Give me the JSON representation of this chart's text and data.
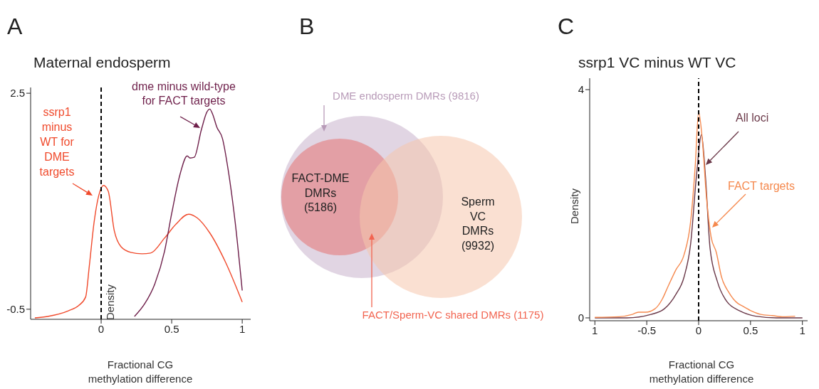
{
  "chart_data": [
    {
      "type": "line",
      "title": "Maternal endosperm",
      "xlabel": "Fractional CG\nmethylation difference",
      "ylabel": "Density",
      "annotations": [
        "A"
      ],
      "xlim": [
        -0.5,
        1.06
      ],
      "xticks": [
        0,
        0.5,
        1
      ],
      "ylim": [
        -0.64,
        2.58
      ],
      "yticks": [
        -0.5,
        2.5
      ],
      "ref_lines": [
        {
          "axis": "x",
          "value": 0,
          "line_style": "dashed",
          "color": "#000000"
        }
      ],
      "series": [
        {
          "name": "ssrp1\nminus\nWT for\nDME\ntargets",
          "color": "#f04a2c",
          "x": [
            -0.47,
            -0.38,
            -0.23,
            -0.16,
            -0.11,
            -0.084,
            -0.05,
            -0.017,
            0.017,
            0.05,
            0.093,
            0.14,
            0.21,
            0.29,
            0.35,
            0.45,
            0.53,
            0.62,
            0.68,
            0.77,
            0.88,
            1.0
          ],
          "values": [
            -0.62,
            -0.6,
            -0.52,
            -0.45,
            -0.33,
            0.1,
            0.71,
            1.08,
            1.22,
            1.14,
            0.59,
            0.37,
            0.29,
            0.27,
            0.28,
            0.49,
            0.68,
            0.82,
            0.77,
            0.56,
            0.16,
            -0.4
          ]
        },
        {
          "name": "dme minus wild-type\nfor FACT targets",
          "color": "#6e1f4a",
          "x": [
            0.236,
            0.31,
            0.38,
            0.45,
            0.5,
            0.56,
            0.61,
            0.63,
            0.66,
            0.71,
            0.75,
            0.77,
            0.79,
            0.82,
            0.86,
            0.9,
            0.95,
            1.0
          ],
          "values": [
            -0.6,
            -0.42,
            -0.15,
            0.31,
            0.83,
            1.38,
            1.63,
            1.6,
            1.61,
            1.99,
            2.24,
            2.28,
            2.21,
            2.03,
            1.87,
            1.44,
            0.71,
            -0.24
          ]
        }
      ]
    },
    {
      "type": "other",
      "annotations": [
        "B",
        "DME endosperm DMRs (9816)",
        "FACT-DME\nDMRs\n(5186)",
        "Sperm\nVC\nDMRs\n(9932)",
        "FACT/Sperm-VC shared DMRs (1175)"
      ]
    },
    {
      "type": "line",
      "title": "ssrp1 VC minus WT VC",
      "xlabel": "Fractional CG\nmethylation difference",
      "ylabel": "Density",
      "annotations": [
        "C"
      ],
      "xlim": [
        -1.05,
        1.05
      ],
      "xticks": [
        {
          "value": -1,
          "label": "1"
        },
        -0.5,
        0,
        0.5,
        1
      ],
      "ylim": [
        -0.05,
        4.2
      ],
      "yticks": [
        0,
        4
      ],
      "ref_lines": [
        {
          "axis": "x",
          "value": 0,
          "line_style": "dashed",
          "color": "#000000"
        }
      ],
      "series": [
        {
          "name": "All loci",
          "color": "#6a3848",
          "x": [
            -1.0,
            -0.69,
            -0.46,
            -0.33,
            -0.22,
            -0.14,
            -0.077,
            -0.022,
            0.027,
            0.066,
            0.11,
            0.18,
            0.27,
            0.4,
            0.55,
            0.75,
            1.0
          ],
          "values": [
            0,
            0,
            0.06,
            0.16,
            0.41,
            0.72,
            1.3,
            2.47,
            3.21,
            2.47,
            1.22,
            0.64,
            0.29,
            0.12,
            0.03,
            0,
            0
          ]
        },
        {
          "name": "FACT targets",
          "color": "#f5894e",
          "x": [
            -1.0,
            -0.77,
            -0.64,
            -0.58,
            -0.51,
            -0.42,
            -0.35,
            -0.3,
            -0.22,
            -0.14,
            -0.077,
            -0.033,
            0,
            0.033,
            0.077,
            0.12,
            0.17,
            0.22,
            0.29,
            0.38,
            0.42,
            0.51,
            0.6,
            0.71,
            0.82,
            0.93
          ],
          "values": [
            0.01,
            0.02,
            0.06,
            0.1,
            0.1,
            0.16,
            0.33,
            0.53,
            0.84,
            1.11,
            1.69,
            2.66,
            3.61,
            3.17,
            2.08,
            1.42,
            1.15,
            0.72,
            0.45,
            0.25,
            0.21,
            0.12,
            0.06,
            0.04,
            0.02,
            0.03
          ]
        }
      ]
    }
  ]
}
